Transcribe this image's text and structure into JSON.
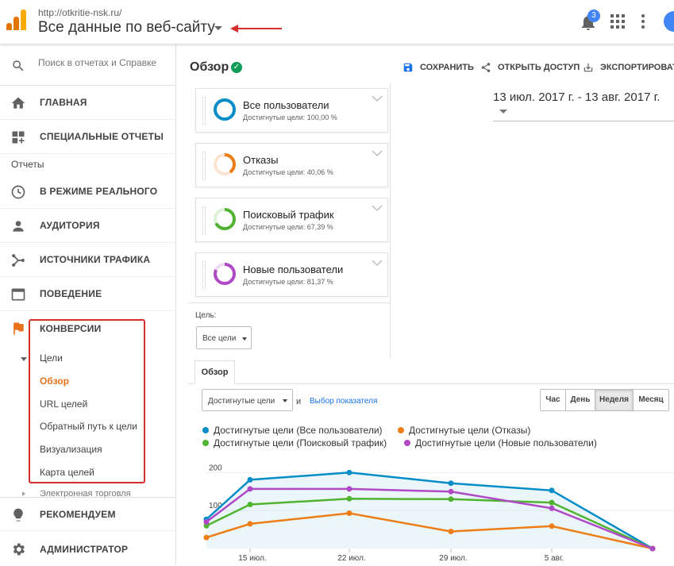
{
  "header": {
    "site_url": "http://otkritie-nsk.ru/",
    "view_title": "Все данные по веб-сайту",
    "notifications_count": "3",
    "brand_colors": [
      "#f9ab00",
      "#e37400",
      "#e37400"
    ]
  },
  "sidebar": {
    "search_placeholder": "Поиск в отчетах и Справке",
    "home": "ГЛАВНАЯ",
    "custom_reports": "СПЕЦИАЛЬНЫЕ ОТЧЕТЫ",
    "reports_heading": "Отчеты",
    "realtime": "В РЕЖИМЕ РЕАЛЬНОГО",
    "audience": "АУДИТОРИЯ",
    "acquisition": "ИСТОЧНИКИ ТРАФИКА",
    "behavior": "ПОВЕДЕНИЕ",
    "conversions": "КОНВЕРСИИ",
    "goals": "Цели",
    "goal_items": [
      "Обзор",
      "URL целей",
      "Обратный путь к цели",
      "Визуализация",
      "Карта целей"
    ],
    "ecommerce": "Электронная торговля",
    "discover": "РЕКОМЕНДУЕМ",
    "admin": "АДМИНИСТРАТОР"
  },
  "main": {
    "title": "Обзор",
    "save": "СОХРАНИТЬ",
    "share": "ОТКРЫТЬ ДОСТУП",
    "export": "ЭКСПОРТИРОВАТЬ",
    "date_range": "13 июл. 2017 г. - 13 авг. 2017 г.",
    "segments": [
      {
        "name": "Все пользователи",
        "detail": "Достигнутые цели: 100,00 %",
        "color": "#058dc7",
        "share": 1.0
      },
      {
        "name": "Отказы",
        "detail": "Достигнутые цели: 40,06 %",
        "color": "#ed7e17",
        "share": 0.4006
      },
      {
        "name": "Поисковый трафик",
        "detail": "Достигнутые цели: 67,39 %",
        "color": "#50b432",
        "share": 0.6739
      },
      {
        "name": "Новые пользователи",
        "detail": "Достигнутые цели: 81,37 %",
        "color": "#af49c5",
        "share": 0.8137
      }
    ],
    "goal_label": "Цель:",
    "goal_value": "Все цели",
    "tab": "Обзор",
    "metric_value": "Достигнутые цели",
    "and_text": "и",
    "metric_link": "Выбор показателя",
    "periods": [
      "Час",
      "День",
      "Неделя",
      "Месяц"
    ],
    "active_period": "Неделя"
  },
  "chart_data": {
    "type": "line",
    "x": [
      "",
      "15 июл.",
      "22 июл.",
      "29 июл.",
      "5 авг.",
      ""
    ],
    "yticks": [
      "200",
      "100"
    ],
    "ylim": [
      0,
      230
    ],
    "series": [
      {
        "name": "Достигнутые цели (Все пользователи)",
        "color": "#058dc7",
        "values": [
          77,
          181,
          200,
          172,
          153,
          0
        ]
      },
      {
        "name": "Достигнутые цели (Отказы)",
        "color": "#ed7e17",
        "values": [
          29,
          65,
          93,
          45,
          59,
          0
        ]
      },
      {
        "name": "Достигнутые цели (Поисковый трафик)",
        "color": "#50b432",
        "values": [
          60,
          116,
          131,
          130,
          121,
          0
        ]
      },
      {
        "name": "Достигнутые цели (Новые пользователи)",
        "color": "#af49c5",
        "values": [
          70,
          157,
          157,
          150,
          106,
          0
        ]
      }
    ]
  }
}
